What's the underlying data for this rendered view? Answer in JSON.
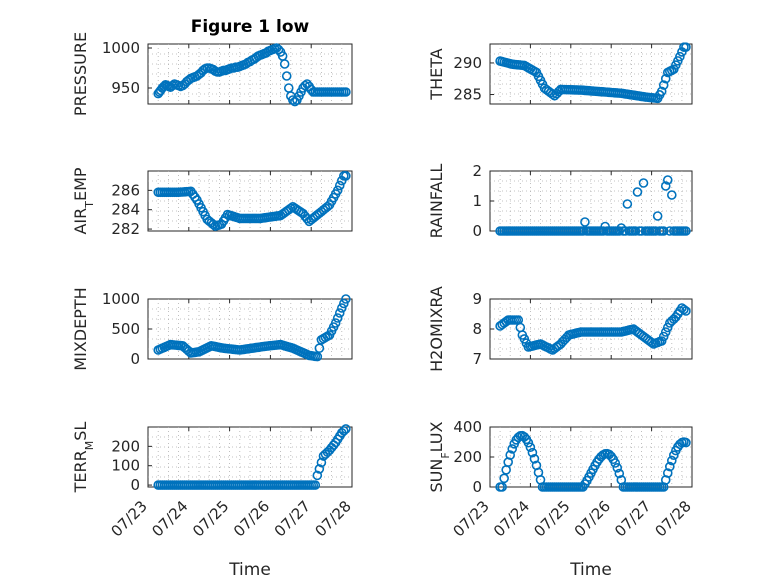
{
  "title": "Figure 1 low",
  "chart_data": [
    {
      "type": "scatter",
      "ylabel": "PRESSURE",
      "xlim": [
        0,
        5
      ],
      "ylim": [
        930,
        1005
      ],
      "yticks": [
        950,
        1000
      ],
      "x": [
        0.0,
        0.03,
        0.06,
        0.1,
        0.14,
        0.18,
        0.22,
        0.26,
        0.3,
        0.35,
        0.4,
        0.45,
        0.5,
        0.55,
        0.6,
        0.65,
        0.7,
        0.75,
        0.8,
        0.85,
        0.9,
        0.95,
        1.0,
        1.05,
        1.1,
        1.15,
        1.2,
        1.25,
        1.3,
        1.35,
        1.4,
        1.45,
        1.5,
        1.55,
        1.6,
        1.65,
        1.7,
        1.75,
        1.8,
        1.85,
        1.9,
        1.95,
        2.0,
        2.05,
        2.1,
        2.15,
        2.2,
        2.25,
        2.3,
        2.35,
        2.4,
        2.45,
        2.5,
        2.55,
        2.6,
        2.65,
        2.7,
        2.75,
        2.8,
        2.85,
        2.9,
        2.95,
        3.0,
        3.05,
        3.1,
        3.15,
        3.2,
        3.25,
        3.3,
        3.35,
        3.4,
        3.45,
        3.5,
        3.55,
        3.6,
        3.65,
        3.7,
        3.75,
        3.8,
        3.85,
        3.9,
        3.95,
        4.0,
        4.05,
        4.1,
        4.15,
        4.2,
        4.25,
        4.3,
        4.35,
        4.4,
        4.45,
        4.5,
        4.55,
        4.6
      ],
      "y": [
        943,
        945,
        947,
        950,
        952,
        954,
        953,
        952,
        951,
        953,
        955,
        954,
        953,
        952,
        953,
        955,
        958,
        960,
        962,
        963,
        964,
        965,
        967,
        969,
        972,
        974,
        975,
        975,
        974,
        973,
        971,
        970,
        970,
        971,
        972,
        972,
        973,
        974,
        975,
        975,
        976,
        976,
        977,
        978,
        979,
        980,
        982,
        983,
        985,
        986,
        988,
        990,
        991,
        992,
        993,
        994,
        996,
        997,
        998,
        999,
        1000,
        998,
        995,
        990,
        980,
        965,
        950,
        940,
        935,
        933,
        935,
        940,
        945,
        950,
        953,
        955,
        952,
        948,
        945,
        945,
        945,
        945,
        945,
        945,
        945,
        945,
        945,
        945,
        945,
        945,
        945,
        945,
        945,
        945,
        945
      ]
    },
    {
      "type": "scatter",
      "ylabel": "THETA",
      "xlim": [
        0,
        5
      ],
      "ylim": [
        283.5,
        293
      ],
      "yticks": [
        285,
        290
      ]
    },
    {
      "type": "scatter",
      "ylabel": "AIR_TEMP",
      "xlim": [
        0,
        5
      ],
      "ylim": [
        281.8,
        288
      ],
      "yticks": [
        282,
        284,
        286
      ]
    },
    {
      "type": "scatter",
      "ylabel": "RAINFALL",
      "xlim": [
        0,
        5
      ],
      "ylim": [
        0,
        2
      ],
      "yticks": [
        0,
        1,
        2
      ]
    },
    {
      "type": "scatter",
      "ylabel": "MIXDEPTH",
      "xlim": [
        0,
        5
      ],
      "ylim": [
        0,
        1000
      ],
      "yticks": [
        0,
        500,
        1000
      ]
    },
    {
      "type": "scatter",
      "ylabel": "H2OMIXRA",
      "xlim": [
        0,
        5
      ],
      "ylim": [
        7,
        9
      ],
      "yticks": [
        7,
        8,
        9
      ]
    },
    {
      "type": "scatter",
      "ylabel": "TERR_MSL",
      "xlim": [
        0,
        5
      ],
      "ylim": [
        -10,
        300
      ],
      "yticks": [
        0,
        100,
        200
      ]
    },
    {
      "type": "scatter",
      "ylabel": "SUN_FLUX",
      "xlim": [
        0,
        5
      ],
      "ylim": [
        0,
        400
      ],
      "yticks": [
        0,
        200,
        400
      ]
    }
  ],
  "xticklabels": [
    "07/23",
    "07/24",
    "07/25",
    "07/26",
    "07/27",
    "07/28"
  ],
  "xlabel": "Time"
}
